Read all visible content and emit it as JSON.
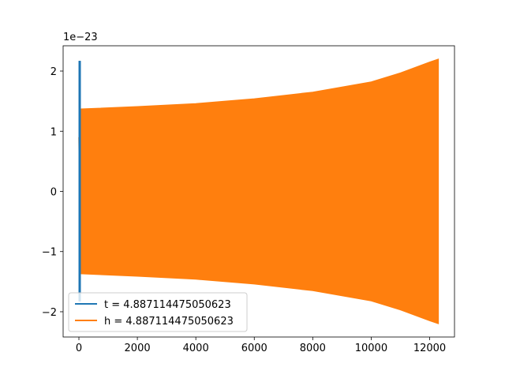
{
  "chart_data": {
    "type": "line",
    "title": "",
    "xlabel": "",
    "ylabel": "",
    "y_offset_text": "1e−23",
    "xlim": [
      -540,
      12850
    ],
    "ylim": [
      -2.42,
      2.42
    ],
    "x_ticks": [
      0,
      2000,
      4000,
      6000,
      8000,
      10000,
      12000
    ],
    "x_tick_labels": [
      "0",
      "2000",
      "4000",
      "6000",
      "8000",
      "10000",
      "12000"
    ],
    "y_ticks": [
      -2,
      -1,
      0,
      1,
      2
    ],
    "y_tick_labels": [
      "−2",
      "−1",
      "0",
      "1",
      "2"
    ],
    "grid": false,
    "legend_position": "lower-left",
    "series": [
      {
        "name": "t = 4.887114475050623",
        "color": "#1f77b4",
        "render": "dense-oscillation-envelope",
        "x_range": [
          0,
          30
        ],
        "envelope_upper": [
          [
            0,
            2.17
          ],
          [
            30,
            2.17
          ]
        ],
        "envelope_lower": [
          [
            0,
            -1.83
          ],
          [
            30,
            -1.83
          ]
        ]
      },
      {
        "name": "h = 4.887114475050623",
        "color": "#ff7f0e",
        "render": "dense-oscillation-envelope",
        "x_range": [
          0,
          12300
        ],
        "start_values": [
          [
            0,
            0.9
          ],
          [
            20,
            0.2
          ],
          [
            60,
            1.37
          ],
          [
            80,
            -1.37
          ]
        ],
        "envelope_upper": [
          [
            60,
            1.37
          ],
          [
            2000,
            1.41
          ],
          [
            4000,
            1.46
          ],
          [
            6000,
            1.54
          ],
          [
            8000,
            1.65
          ],
          [
            10000,
            1.82
          ],
          [
            11000,
            1.97
          ],
          [
            12000,
            2.15
          ],
          [
            12300,
            2.2
          ]
        ],
        "envelope_lower": [
          [
            60,
            -1.37
          ],
          [
            2000,
            -1.41
          ],
          [
            4000,
            -1.46
          ],
          [
            6000,
            -1.54
          ],
          [
            8000,
            -1.65
          ],
          [
            10000,
            -1.82
          ],
          [
            11000,
            -1.97
          ],
          [
            12000,
            -2.15
          ],
          [
            12300,
            -2.2
          ]
        ]
      }
    ]
  }
}
